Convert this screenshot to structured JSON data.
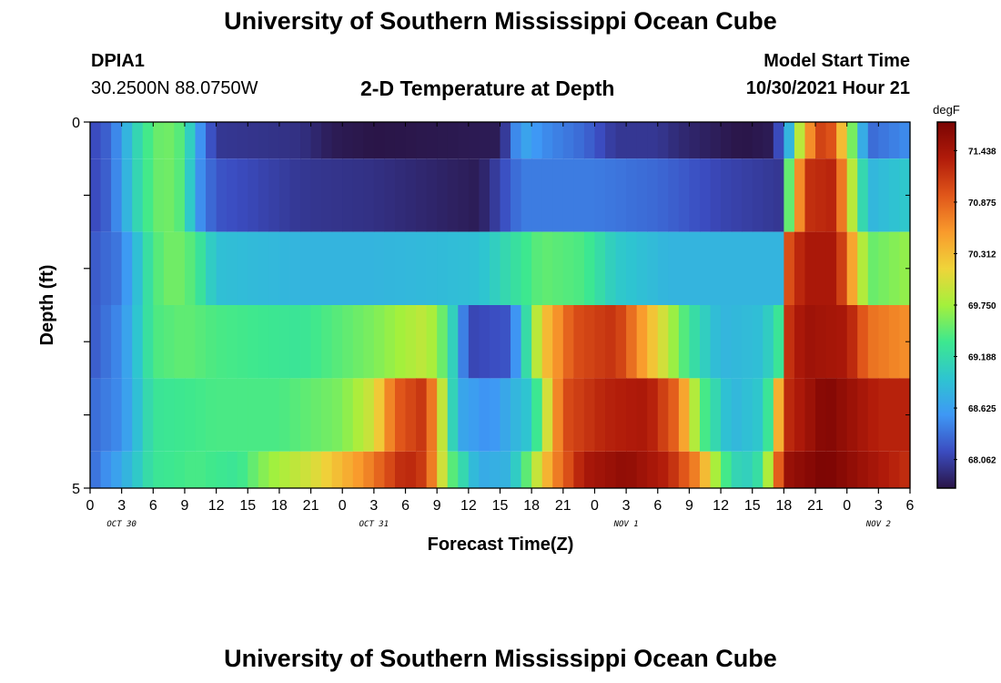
{
  "header": {
    "title": "University of Southern Mississippi Ocean Cube",
    "station_id": "DPIA1",
    "station_coords": "30.2500N  88.0750W",
    "plot_title": "2-D Temperature at Depth",
    "model_start_label": "Model Start Time",
    "model_start_value": "10/30/2021 Hour 21"
  },
  "footer": {
    "title": "University of Southern Mississippi Ocean Cube"
  },
  "chart_data": {
    "type": "heatmap",
    "title": "2-D Temperature at Depth",
    "xlabel": "Forecast Time(Z)",
    "ylabel": "Depth (ft)",
    "colorbar_unit": "degF",
    "colorbar_ticks": [
      "71.438",
      "70.875",
      "70.312",
      "69.750",
      "69.188",
      "68.625",
      "68.062"
    ],
    "color_range": [
      67.75,
      71.75
    ],
    "colors": [
      "#2a1547",
      "#3b4cc0",
      "#3e98f5",
      "#2ec5d0",
      "#3de88f",
      "#a4f03c",
      "#efd43a",
      "#f99a2c",
      "#e0561a",
      "#b11b0a",
      "#7a0403"
    ],
    "x_tick_labels": [
      "0",
      "3",
      "6",
      "9",
      "12",
      "15",
      "18",
      "21",
      "0",
      "3",
      "6",
      "9",
      "12",
      "15",
      "18",
      "21",
      "0",
      "3",
      "6",
      "9",
      "12",
      "15",
      "18",
      "21",
      "0",
      "3",
      "6"
    ],
    "date_labels": [
      {
        "label": "OCT 30",
        "hour": 3
      },
      {
        "label": "OCT 31",
        "hour": 27
      },
      {
        "label": "NOV 1",
        "hour": 51
      },
      {
        "label": "NOV 2",
        "hour": 75
      }
    ],
    "x_range_hours": [
      0,
      78
    ],
    "y_range_ft": [
      0,
      5
    ],
    "y_tick_labels": [
      "0",
      "5"
    ],
    "depth_rows": [
      {
        "top_ft": 0.0,
        "bottom_ft": 0.5,
        "keys": [
          [
            0,
            68.1
          ],
          [
            2,
            68.3
          ],
          [
            5,
            69.3
          ],
          [
            7,
            69.6
          ],
          [
            9,
            69.4
          ],
          [
            10,
            68.7
          ],
          [
            12,
            68.0
          ],
          [
            20,
            67.95
          ],
          [
            23,
            67.8
          ],
          [
            27,
            67.75
          ],
          [
            39,
            67.8
          ],
          [
            41,
            68.7
          ],
          [
            43,
            68.5
          ],
          [
            47,
            68.3
          ],
          [
            50,
            68.0
          ],
          [
            54,
            68.0
          ],
          [
            56,
            67.9
          ],
          [
            62,
            67.75
          ],
          [
            65,
            67.8
          ],
          [
            66.5,
            68.8
          ],
          [
            68,
            70.4
          ],
          [
            70,
            71.3
          ],
          [
            72,
            70.0
          ],
          [
            74,
            68.3
          ],
          [
            78,
            68.5
          ]
        ]
      },
      {
        "top_ft": 0.5,
        "bottom_ft": 1.5,
        "keys": [
          [
            0,
            68.1
          ],
          [
            2,
            68.3
          ],
          [
            5,
            69.3
          ],
          [
            7,
            69.6
          ],
          [
            9,
            69.4
          ],
          [
            10,
            68.6
          ],
          [
            12,
            68.2
          ],
          [
            20,
            68.0
          ],
          [
            27,
            67.95
          ],
          [
            37,
            67.8
          ],
          [
            39,
            68.1
          ],
          [
            41,
            68.4
          ],
          [
            48,
            68.4
          ],
          [
            54,
            68.3
          ],
          [
            60,
            68.1
          ],
          [
            65.5,
            68.0
          ],
          [
            66.5,
            69.5
          ],
          [
            68,
            71.2
          ],
          [
            71,
            71.3
          ],
          [
            72,
            70.2
          ],
          [
            74,
            68.8
          ],
          [
            78,
            69.0
          ]
        ]
      },
      {
        "top_ft": 1.5,
        "bottom_ft": 2.5,
        "keys": [
          [
            0,
            68.2
          ],
          [
            3,
            68.4
          ],
          [
            6,
            69.4
          ],
          [
            8,
            69.6
          ],
          [
            10,
            69.4
          ],
          [
            12,
            68.9
          ],
          [
            20,
            68.8
          ],
          [
            27,
            68.8
          ],
          [
            37,
            68.9
          ],
          [
            40,
            69.2
          ],
          [
            43,
            69.5
          ],
          [
            47,
            69.4
          ],
          [
            50,
            69.0
          ],
          [
            55,
            68.8
          ],
          [
            60,
            68.8
          ],
          [
            65.5,
            68.8
          ],
          [
            66.5,
            71.0
          ],
          [
            68,
            71.4
          ],
          [
            71,
            71.4
          ],
          [
            72,
            70.8
          ],
          [
            74,
            69.5
          ],
          [
            78,
            69.7
          ]
        ]
      },
      {
        "top_ft": 2.5,
        "bottom_ft": 3.5,
        "keys": [
          [
            0,
            68.2
          ],
          [
            3,
            68.5
          ],
          [
            6,
            69.4
          ],
          [
            9,
            69.5
          ],
          [
            12,
            69.4
          ],
          [
            20,
            69.3
          ],
          [
            27,
            69.6
          ],
          [
            32,
            69.9
          ],
          [
            34,
            69.4
          ],
          [
            36,
            68.1
          ],
          [
            40,
            68.2
          ],
          [
            43,
            70.2
          ],
          [
            46,
            71.0
          ],
          [
            50,
            71.2
          ],
          [
            53,
            70.4
          ],
          [
            57,
            69.3
          ],
          [
            60,
            68.8
          ],
          [
            64,
            68.9
          ],
          [
            65.5,
            69.3
          ],
          [
            66.5,
            71.2
          ],
          [
            68,
            71.5
          ],
          [
            72,
            71.4
          ],
          [
            74,
            70.8
          ],
          [
            78,
            70.6
          ]
        ]
      },
      {
        "top_ft": 3.5,
        "bottom_ft": 4.5,
        "keys": [
          [
            0,
            68.3
          ],
          [
            3,
            68.5
          ],
          [
            6,
            69.3
          ],
          [
            12,
            69.4
          ],
          [
            18,
            69.4
          ],
          [
            24,
            69.6
          ],
          [
            27,
            70.0
          ],
          [
            29,
            70.9
          ],
          [
            32,
            71.2
          ],
          [
            33,
            70.3
          ],
          [
            35,
            68.7
          ],
          [
            38,
            68.5
          ],
          [
            42,
            69.0
          ],
          [
            45,
            71.0
          ],
          [
            49,
            71.3
          ],
          [
            53,
            71.4
          ],
          [
            56,
            70.8
          ],
          [
            58,
            69.5
          ],
          [
            61,
            68.8
          ],
          [
            64,
            69.0
          ],
          [
            65,
            69.6
          ],
          [
            66,
            71.2
          ],
          [
            70,
            71.7
          ],
          [
            75,
            71.3
          ],
          [
            78,
            71.3
          ]
        ]
      },
      {
        "top_ft": 4.5,
        "bottom_ft": 5.0,
        "keys": [
          [
            0,
            68.3
          ],
          [
            3,
            68.7
          ],
          [
            6,
            69.3
          ],
          [
            10,
            69.4
          ],
          [
            14,
            69.3
          ],
          [
            17,
            69.7
          ],
          [
            21,
            70.0
          ],
          [
            26,
            70.6
          ],
          [
            30,
            71.3
          ],
          [
            32,
            71.1
          ],
          [
            34,
            69.6
          ],
          [
            37,
            68.7
          ],
          [
            40,
            68.8
          ],
          [
            44,
            70.6
          ],
          [
            47,
            71.4
          ],
          [
            51,
            71.6
          ],
          [
            55,
            71.3
          ],
          [
            58,
            70.6
          ],
          [
            60,
            69.5
          ],
          [
            62,
            69.0
          ],
          [
            64,
            69.3
          ],
          [
            65,
            70.3
          ],
          [
            66,
            71.5
          ],
          [
            70,
            71.75
          ],
          [
            75,
            71.4
          ],
          [
            78,
            71.2
          ]
        ]
      }
    ]
  }
}
